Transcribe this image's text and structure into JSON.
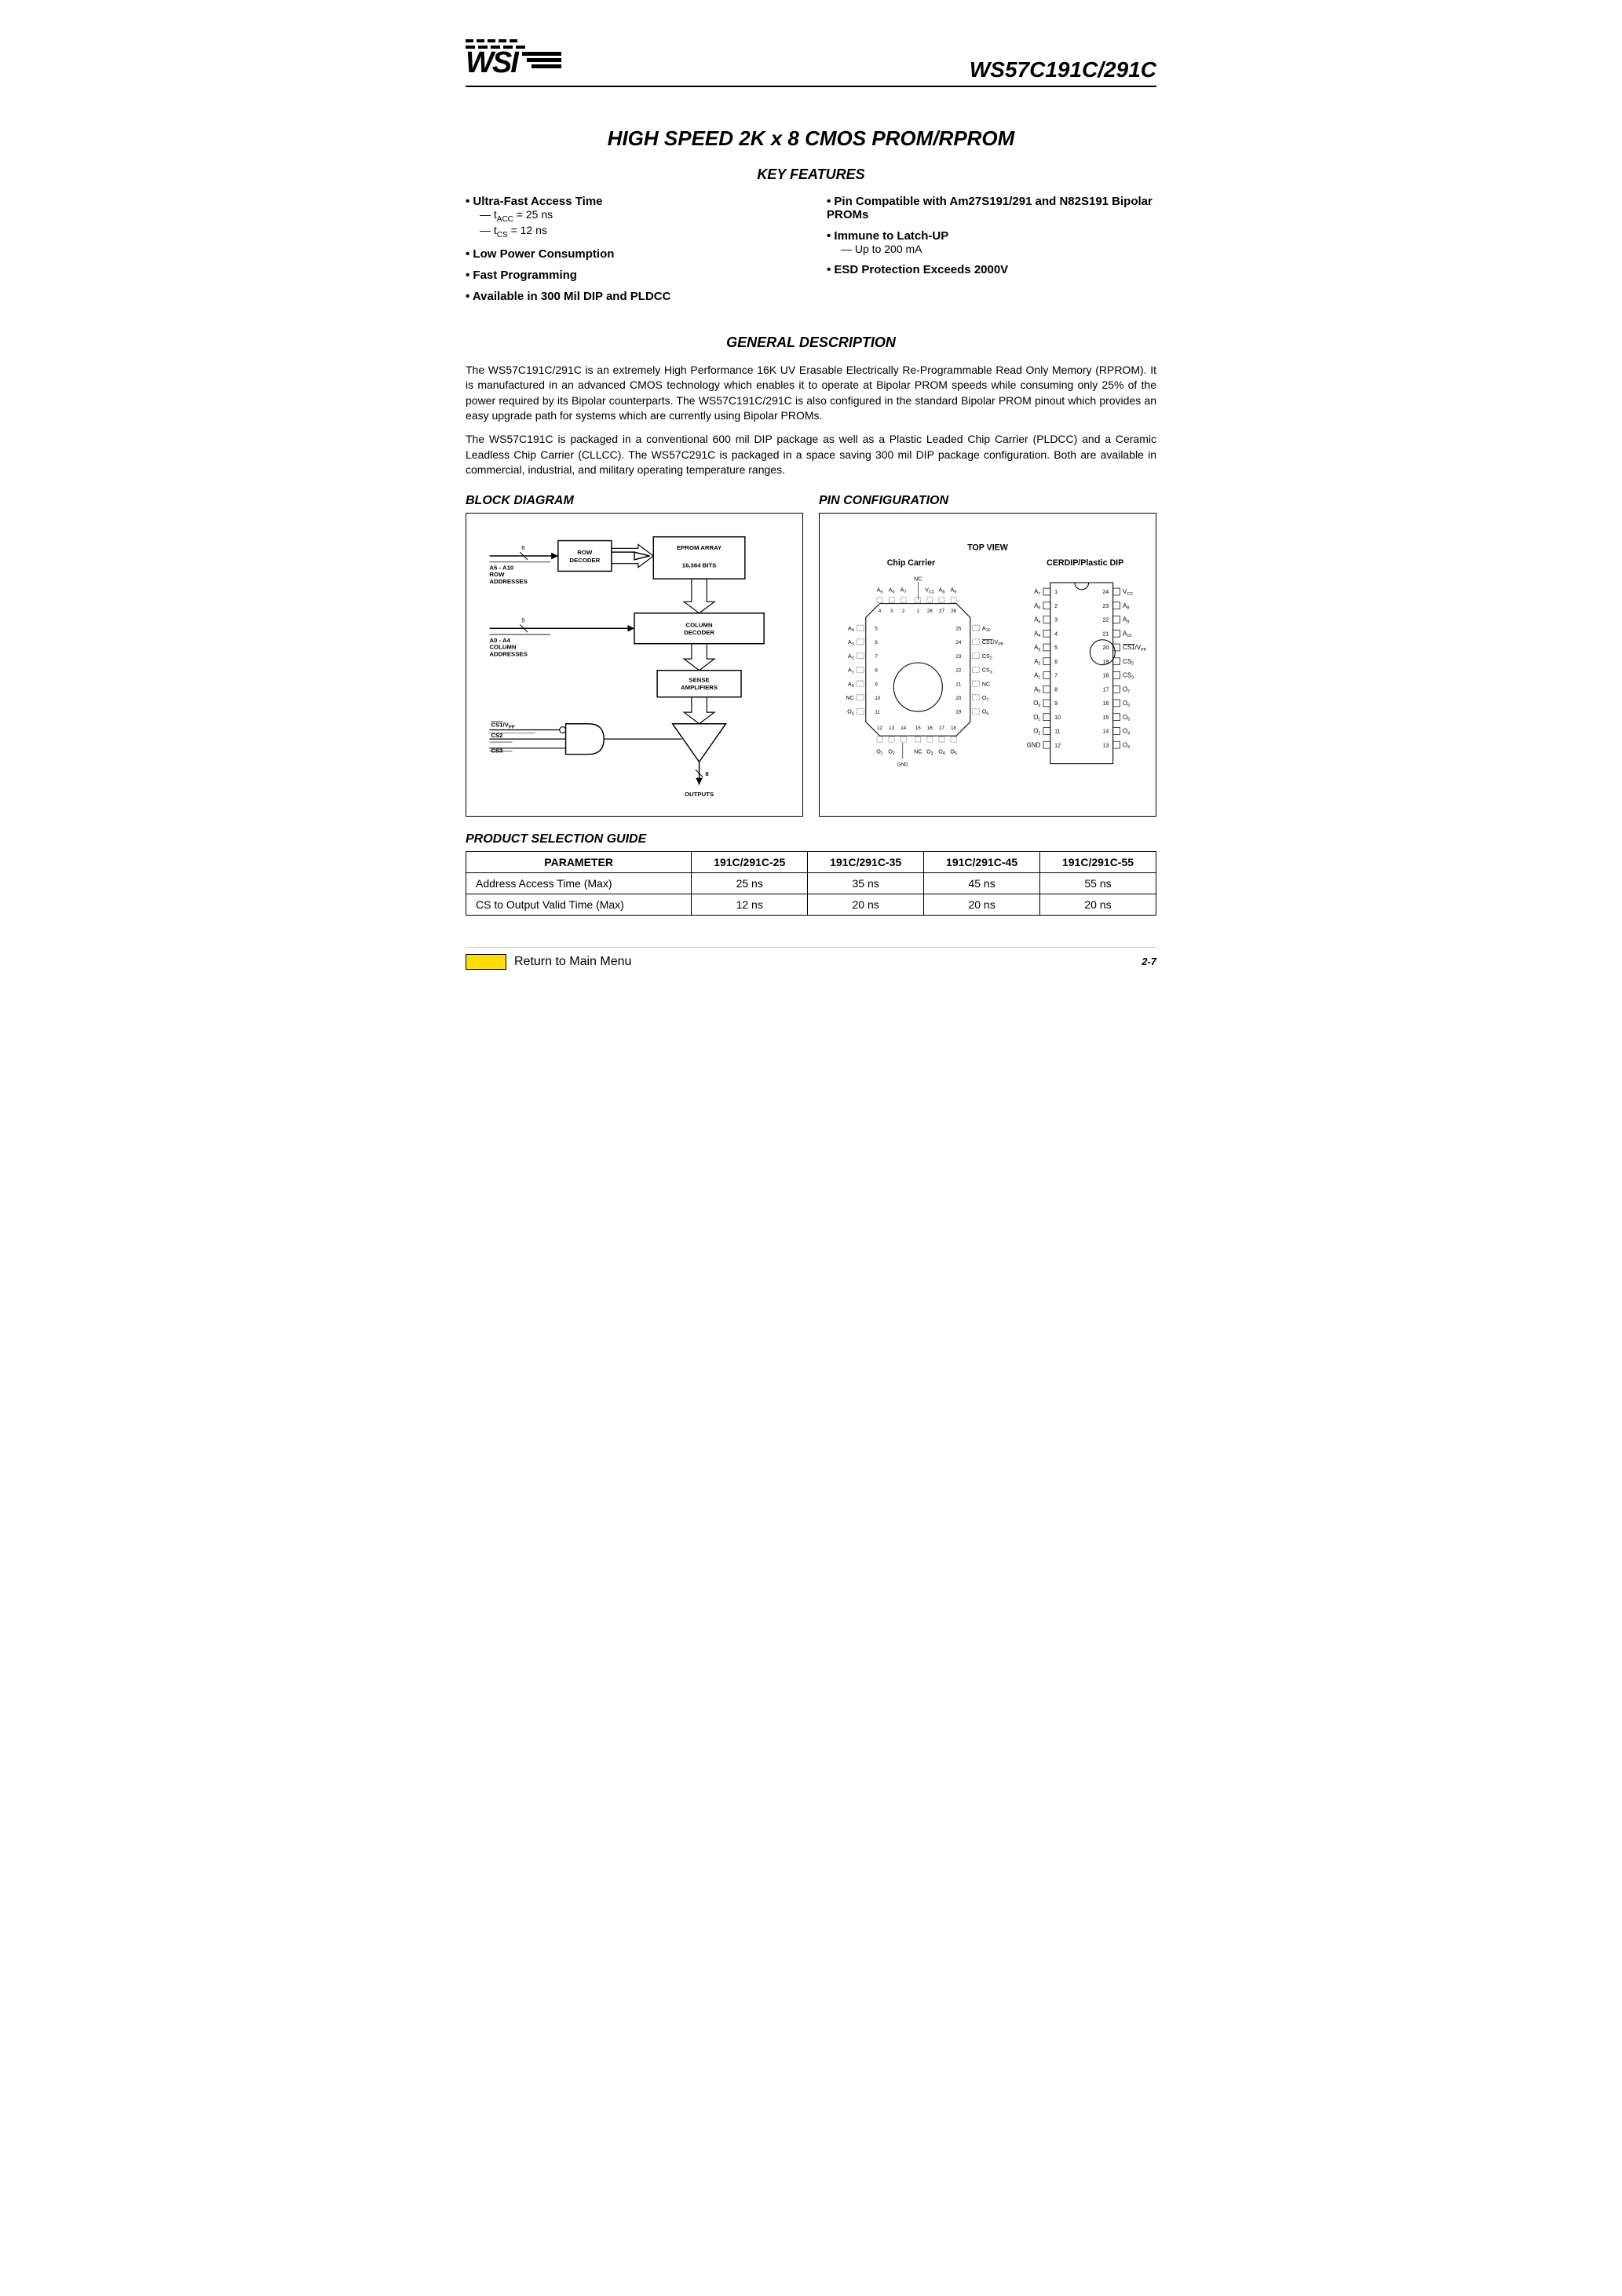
{
  "header": {
    "part_number": "WS57C191C/291C"
  },
  "title": "HIGH SPEED 2K x 8 CMOS PROM/RPROM",
  "key_features_header": "KEY FEATURES",
  "features_left": [
    {
      "main": "Ultra-Fast Access Time",
      "subs": [
        {
          "prefix": "— t",
          "sub": "ACC",
          "rest": "  =  25 ns"
        },
        {
          "prefix": "— t",
          "sub": "CS",
          "rest": "  =  12 ns"
        }
      ]
    },
    {
      "main": "Low Power Consumption"
    },
    {
      "main": "Fast Programming"
    },
    {
      "main": "Available in 300 Mil DIP and PLDCC"
    }
  ],
  "features_right": [
    {
      "main": "Pin Compatible with Am27S191/291 and N82S191 Bipolar PROMs"
    },
    {
      "main": "Immune to Latch-UP",
      "subs_plain": [
        "— Up to 200 mA"
      ]
    },
    {
      "main": "ESD Protection Exceeds 2000V"
    }
  ],
  "general_description_header": "GENERAL DESCRIPTION",
  "description_paragraphs": [
    "The WS57C191C/291C is an extremely High Performance 16K UV Erasable Electrically Re-Programmable Read Only Memory (RPROM). It is manufactured in an advanced CMOS technology which enables it to operate at Bipolar PROM speeds while consuming only 25% of the power required by its Bipolar counterparts. The WS57C191C/291C is also configured in the standard Bipolar PROM pinout which provides an easy upgrade path for systems which are currently using Bipolar PROMs.",
    "The WS57C191C is packaged in a conventional 600 mil DIP package as well as a Plastic Leaded Chip Carrier (PLDCC) and a Ceramic Leadless Chip Carrier (CLLCC). The WS57C291C is packaged in a space saving 300 mil DIP package configuration. Both are available in commercial, industrial, and military operating temperature ranges."
  ],
  "block_diagram": {
    "title": "BLOCK DIAGRAM",
    "row_addresses_label": "A5 - A10\nROW\nADDRESSES",
    "row_bus_width": "6",
    "row_decoder": "ROW\nDECODER",
    "eprom_array": "EPROM ARRAY",
    "eprom_bits": "16,384 BITS",
    "col_addresses_label": "A0 - A4\nCOLUMN\nADDRESSES",
    "col_bus_width": "5",
    "column_decoder": "COLUMN\nDECODER",
    "sense_amplifiers": "SENSE\nAMPLIFIERS",
    "cs1_label": "CS1/VPP",
    "cs2_label": "CS2",
    "cs3_label": "CS3",
    "output_bus_width": "8",
    "outputs_label": "OUTPUTS"
  },
  "pin_config": {
    "title": "PIN CONFIGURATION",
    "top_view": "TOP VIEW",
    "chip_carrier_label": "Chip Carrier",
    "dip_label": "CERDIP/Plastic DIP",
    "carrier_top": [
      "A5",
      "A6",
      "A7",
      "",
      "VCC",
      "A8",
      "A9"
    ],
    "carrier_nc_top": "NC",
    "carrier_top_nums": [
      "4",
      "3",
      "2",
      "1",
      "28",
      "27",
      "26"
    ],
    "carrier_left": [
      {
        "label": "A4",
        "pin": "5"
      },
      {
        "label": "A3",
        "pin": "6"
      },
      {
        "label": "A2",
        "pin": "7"
      },
      {
        "label": "A1",
        "pin": "8"
      },
      {
        "label": "A0",
        "pin": "9"
      },
      {
        "label": "NC",
        "pin": "10"
      },
      {
        "label": "O0",
        "pin": "11"
      }
    ],
    "carrier_right": [
      {
        "pin": "25",
        "label": "A10"
      },
      {
        "pin": "24",
        "label": "CS1/VPP",
        "overline": true
      },
      {
        "pin": "23",
        "label": "CS2"
      },
      {
        "pin": "22",
        "label": "CS3"
      },
      {
        "pin": "21",
        "label": "NC"
      },
      {
        "pin": "20",
        "label": "O7"
      },
      {
        "pin": "19",
        "label": "O6"
      }
    ],
    "carrier_bottom_nums": [
      "12",
      "13",
      "14",
      "15",
      "16",
      "17",
      "18"
    ],
    "carrier_bottom": [
      "O1",
      "O2",
      "",
      "NC",
      "O3",
      "O4",
      "O5"
    ],
    "carrier_gnd": "GND",
    "dip_left": [
      {
        "label": "A7",
        "pin": "1"
      },
      {
        "label": "A6",
        "pin": "2"
      },
      {
        "label": "A5",
        "pin": "3"
      },
      {
        "label": "A4",
        "pin": "4"
      },
      {
        "label": "A3",
        "pin": "5"
      },
      {
        "label": "A2",
        "pin": "6"
      },
      {
        "label": "A1",
        "pin": "7"
      },
      {
        "label": "A0",
        "pin": "8"
      },
      {
        "label": "O0",
        "pin": "9"
      },
      {
        "label": "O1",
        "pin": "10"
      },
      {
        "label": "O2",
        "pin": "11"
      },
      {
        "label": "GND",
        "pin": "12"
      }
    ],
    "dip_right": [
      {
        "pin": "24",
        "label": "VCC"
      },
      {
        "pin": "23",
        "label": "A8"
      },
      {
        "pin": "22",
        "label": "A9"
      },
      {
        "pin": "21",
        "label": "A10"
      },
      {
        "pin": "20",
        "label": "CS1/VPP",
        "overline": true
      },
      {
        "pin": "19",
        "label": "CS2"
      },
      {
        "pin": "18",
        "label": "CS3"
      },
      {
        "pin": "17",
        "label": "O7"
      },
      {
        "pin": "16",
        "label": "O6"
      },
      {
        "pin": "15",
        "label": "O5"
      },
      {
        "pin": "14",
        "label": "O4"
      },
      {
        "pin": "13",
        "label": "O3"
      }
    ]
  },
  "selection_guide": {
    "title": "PRODUCT SELECTION GUIDE",
    "columns": [
      "PARAMETER",
      "191C/291C-25",
      "191C/291C-35",
      "191C/291C-45",
      "191C/291C-55"
    ],
    "rows": [
      [
        "Address Access Time (Max)",
        "25 ns",
        "35 ns",
        "45 ns",
        "55 ns"
      ],
      [
        "CS to Output Valid Time (Max)",
        "12 ns",
        "20 ns",
        "20 ns",
        "20 ns"
      ]
    ]
  },
  "footer": {
    "return_text": "Return to Main Menu",
    "page_number": "2-7"
  },
  "colors": {
    "text": "#000000",
    "background": "#ffffff",
    "highlight": "#ffdd00",
    "border": "#000000"
  }
}
